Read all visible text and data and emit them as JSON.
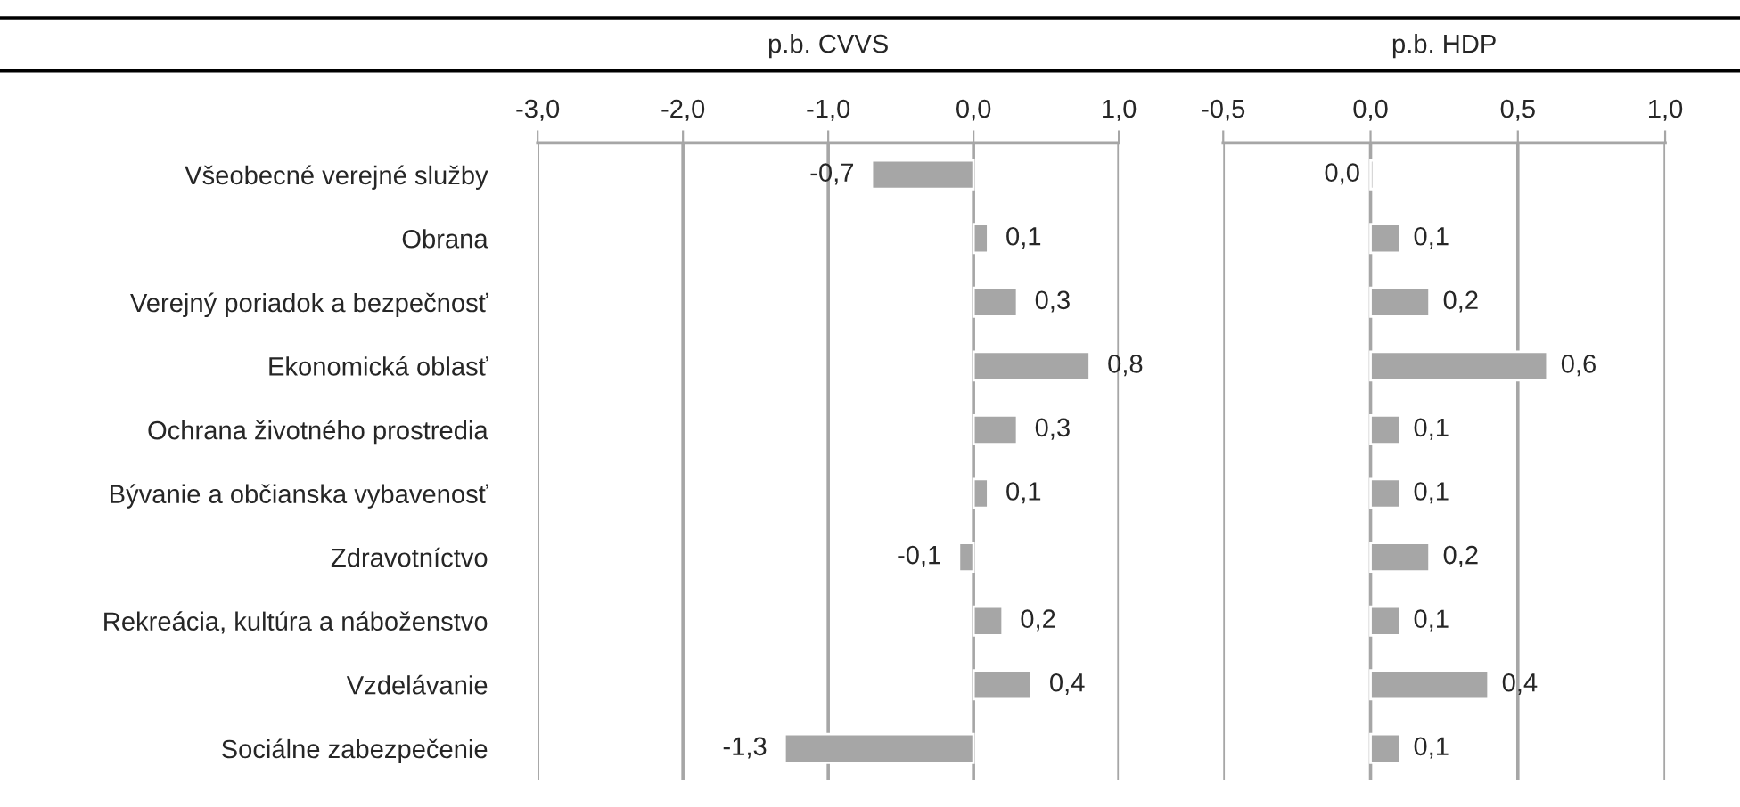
{
  "chart_data": [
    {
      "type": "bar",
      "orientation": "horizontal",
      "title": "p.b. CVVS",
      "categories": [
        "Všeobecné verejné služby",
        "Obrana",
        "Verejný poriadok a bezpečnosť",
        "Ekonomická oblasť",
        "Ochrana životného prostredia",
        "Bývanie a občianska vybavenosť",
        "Zdravotníctvo",
        "Rekreácia, kultúra a náboženstvo",
        "Vzdelávanie",
        "Sociálne zabezpečenie"
      ],
      "values": [
        -0.7,
        0.1,
        0.3,
        0.8,
        0.3,
        0.1,
        -0.1,
        0.2,
        0.4,
        -1.3
      ],
      "value_labels": [
        "-0,7",
        "0,1",
        "0,3",
        "0,8",
        "0,3",
        "0,1",
        "-0,1",
        "0,2",
        "0,4",
        "-1,3"
      ],
      "color": "#a6a6a6",
      "xlim": [
        -3,
        1
      ],
      "xticks": [
        {
          "value": -3,
          "label": "-3,0"
        },
        {
          "value": -2,
          "label": "-2,0"
        },
        {
          "value": -1,
          "label": "-1,0"
        },
        {
          "value": 0,
          "label": "0,0"
        },
        {
          "value": 1,
          "label": "1,0"
        }
      ],
      "grid": "x"
    },
    {
      "type": "bar",
      "orientation": "horizontal",
      "title": "p.b. HDP",
      "categories": [
        null,
        null,
        null,
        null,
        null,
        null,
        null,
        null,
        null,
        null
      ],
      "values": [
        0.01,
        0.1,
        0.2,
        0.6,
        0.1,
        0.1,
        0.2,
        0.1,
        0.4,
        0.1
      ],
      "value_labels": [
        "0,0",
        "0,1",
        "0,2",
        "0,6",
        "0,1",
        "0,1",
        "0,2",
        "0,1",
        "0,4",
        "0,1"
      ],
      "color": "#a6a6a6",
      "xlim": [
        -0.5,
        1
      ],
      "xticks": [
        {
          "value": -0.5,
          "label": "-0,5"
        },
        {
          "value": 0,
          "label": "0,0"
        },
        {
          "value": 0.5,
          "label": "0,5"
        },
        {
          "value": 1,
          "label": "1,0"
        }
      ],
      "grid": "x",
      "tick_labels": "x"
    }
  ]
}
